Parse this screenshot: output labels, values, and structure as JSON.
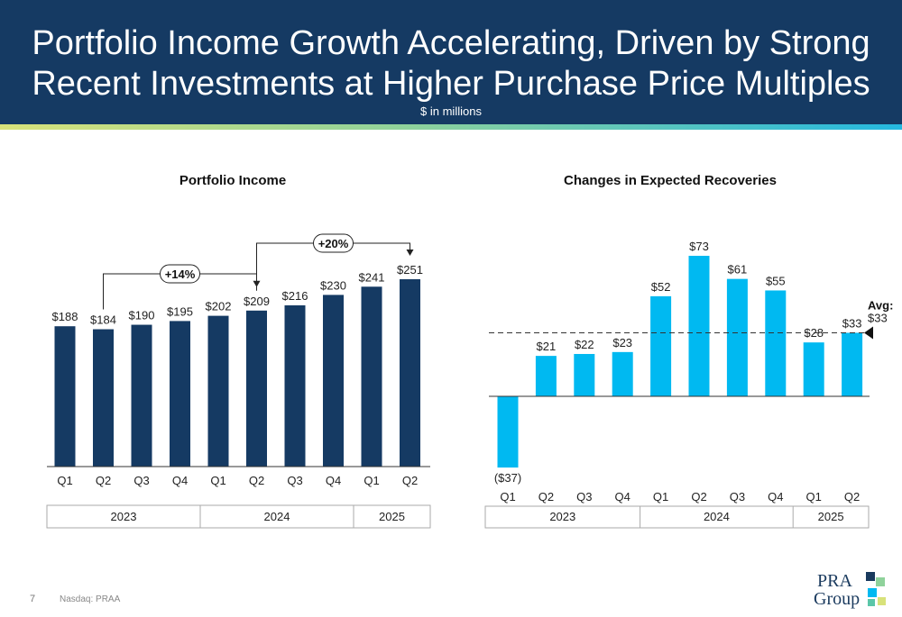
{
  "header": {
    "title_line1": "Portfolio Income Growth Accelerating, Driven by Strong",
    "title_line2": "Recent Investments at Higher Purchase Price Multiples",
    "subtitle": "$ in millions"
  },
  "colors": {
    "header_bg": "#153a63",
    "portfolio_bar": "#153a63",
    "recoveries_bar": "#00b9f1",
    "stripe_left": "#d8e27a",
    "stripe_right": "#24b8e0"
  },
  "chart_data": [
    {
      "type": "bar",
      "title": "Portfolio Income",
      "categories": [
        "Q1",
        "Q2",
        "Q3",
        "Q4",
        "Q1",
        "Q2",
        "Q3",
        "Q4",
        "Q1",
        "Q2"
      ],
      "years": [
        {
          "label": "2023",
          "quarters": 4
        },
        {
          "label": "2024",
          "quarters": 4
        },
        {
          "label": "2025",
          "quarters": 2
        }
      ],
      "values": [
        188,
        184,
        190,
        195,
        202,
        209,
        216,
        230,
        241,
        251
      ],
      "data_labels": [
        "$188",
        "$184",
        "$190",
        "$195",
        "$202",
        "$209",
        "$216",
        "$230",
        "$241",
        "$251"
      ],
      "annotations": [
        {
          "label": "+14%",
          "from_index": 1,
          "to_index": 5
        },
        {
          "label": "+20%",
          "from_index": 5,
          "to_index": 9
        }
      ],
      "ylim": [
        0,
        280
      ],
      "grid": false
    },
    {
      "type": "bar",
      "title": "Changes in Expected Recoveries",
      "categories": [
        "Q1",
        "Q2",
        "Q3",
        "Q4",
        "Q1",
        "Q2",
        "Q3",
        "Q4",
        "Q1",
        "Q2"
      ],
      "years": [
        {
          "label": "2023",
          "quarters": 4
        },
        {
          "label": "2024",
          "quarters": 4
        },
        {
          "label": "2025",
          "quarters": 2
        }
      ],
      "values": [
        -37,
        21,
        22,
        23,
        52,
        73,
        61,
        55,
        28,
        33
      ],
      "data_labels": [
        "($37)",
        "$21",
        "$22",
        "$23",
        "$52",
        "$73",
        "$61",
        "$55",
        "$28",
        "$33"
      ],
      "average": {
        "value": 33,
        "label": "Avg:",
        "value_label": "$33"
      },
      "ylim": [
        -45,
        80
      ],
      "grid": false
    }
  ],
  "footer": {
    "page_number": "7",
    "ticker": "Nasdaq: PRAA",
    "logo_text_top": "PRA",
    "logo_text_bottom": "Group"
  }
}
